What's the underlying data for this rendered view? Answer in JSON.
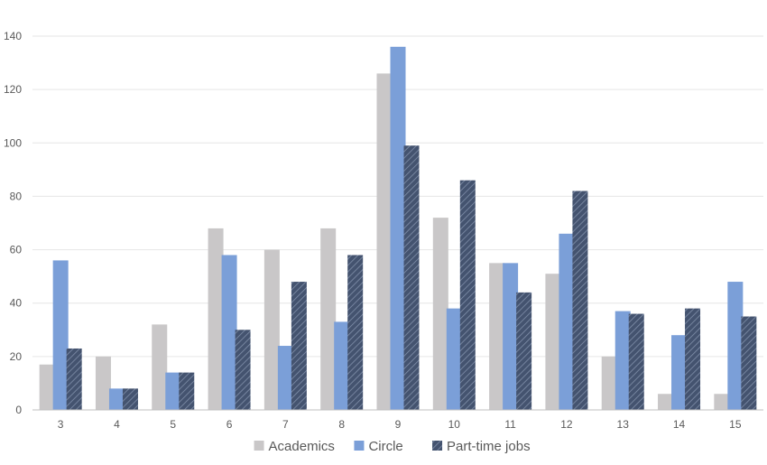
{
  "chart_data": {
    "type": "bar",
    "title": "",
    "xlabel": "",
    "ylabel": "",
    "ylim": [
      0,
      140
    ],
    "yticks": [
      0,
      20,
      40,
      60,
      80,
      100,
      120,
      140
    ],
    "grid": true,
    "legend_position": "bottom",
    "categories": [
      "3",
      "4",
      "5",
      "6",
      "7",
      "8",
      "9",
      "10",
      "11",
      "12",
      "13",
      "14",
      "15"
    ],
    "series": [
      {
        "name": "Academics",
        "color": "#c9c7c8",
        "pattern": "solid",
        "values": [
          17,
          20,
          32,
          68,
          60,
          68,
          126,
          72,
          55,
          51,
          20,
          6,
          6
        ]
      },
      {
        "name": "Circle",
        "color": "#7b9fd8",
        "pattern": "solid",
        "values": [
          56,
          8,
          14,
          58,
          24,
          33,
          136,
          38,
          55,
          66,
          37,
          28,
          48
        ]
      },
      {
        "name": "Part-time jobs",
        "color": "#44536f",
        "pattern": "hatched",
        "values": [
          23,
          8,
          14,
          30,
          48,
          58,
          99,
          86,
          44,
          82,
          36,
          38,
          35
        ]
      }
    ]
  }
}
